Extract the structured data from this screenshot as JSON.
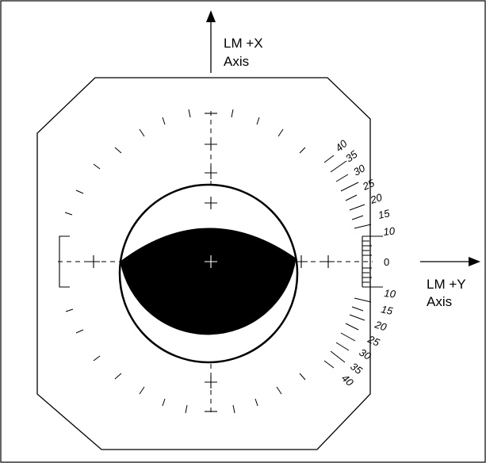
{
  "x_axis": {
    "line1": "LM +X",
    "line2": "Axis"
  },
  "y_axis": {
    "line1": "LM +Y",
    "line2": "Axis"
  },
  "zero_label": "0",
  "upper_scale": [
    "10",
    "15",
    "20",
    "25",
    "30",
    "35",
    "40"
  ],
  "lower_scale": [
    "10",
    "15",
    "20",
    "25",
    "30",
    "35",
    "40"
  ],
  "colors": {
    "ink": "#000000",
    "paper": "#ffffff"
  }
}
